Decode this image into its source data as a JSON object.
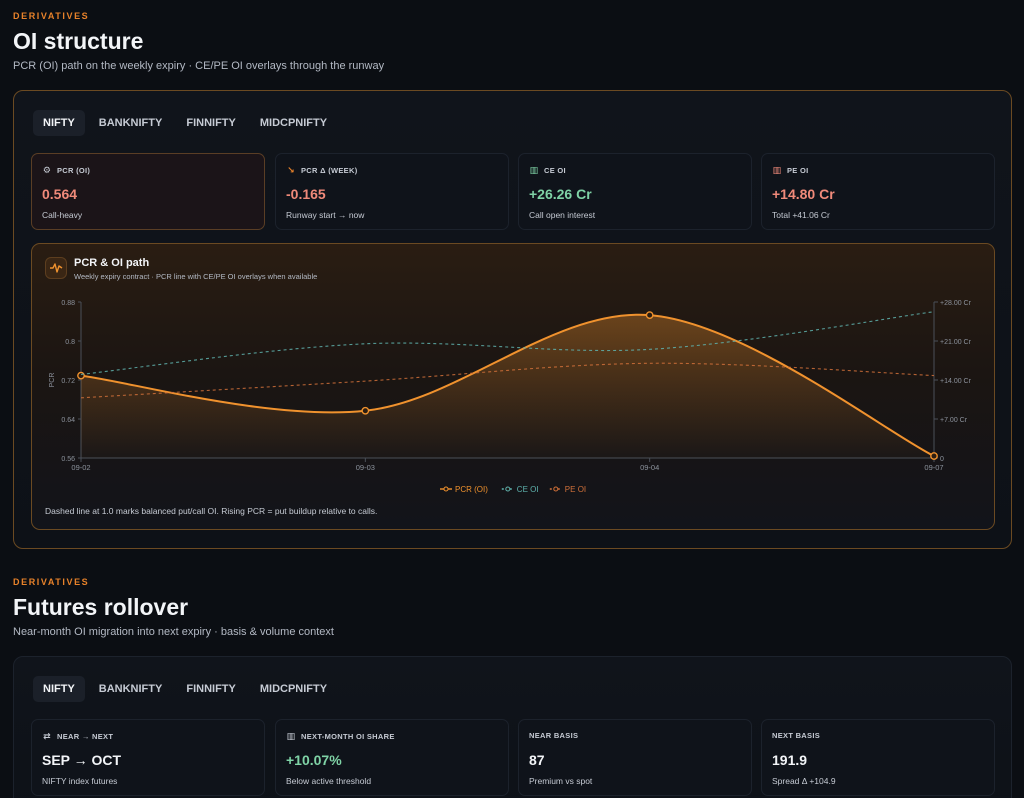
{
  "oi_section": {
    "eyebrow": "DERIVATIVES",
    "title": "OI structure",
    "subtitle": "PCR (OI) path on the weekly expiry · CE/PE OI overlays through the runway",
    "tabs": [
      "NIFTY",
      "BANKNIFTY",
      "FINNIFTY",
      "MIDCPNIFTY"
    ],
    "active_tab": "NIFTY",
    "kpis": [
      {
        "icon": "gauge-icon",
        "glyph": "⚙",
        "label": "PCR (OI)",
        "value": "0.564",
        "note": "Call-heavy",
        "tone": "neg"
      },
      {
        "icon": "trend-down-icon",
        "glyph": "↘",
        "label": "PCR Δ (WEEK)",
        "value": "-0.165",
        "note": "Runway start → now",
        "tone": "neg"
      },
      {
        "icon": "bar-chart-icon",
        "glyph": "▥",
        "label": "CE OI",
        "value": "+26.26 Cr",
        "note": "Call open interest",
        "tone": "pos"
      },
      {
        "icon": "bar-chart-icon",
        "glyph": "▥",
        "label": "PE OI",
        "value": "+14.80 Cr",
        "note": "Total +41.06 Cr",
        "tone": "neg"
      }
    ],
    "chart_card": {
      "title": "PCR & OI path",
      "subtitle": "Weekly expiry contract · PCR line with CE/PE OI overlays when available",
      "footnote": "Dashed line at 1.0 marks balanced put/call OI. Rising PCR = put buildup relative to calls."
    }
  },
  "chart_data": {
    "type": "line",
    "x": [
      "09-02",
      "09-03",
      "09-04",
      "09-07"
    ],
    "ylabel": "PCR",
    "ylim": [
      0.56,
      0.88
    ],
    "yticks": [
      "0.56",
      "0.64",
      "0.72",
      "0.8",
      "0.88"
    ],
    "y2lim": [
      0,
      28
    ],
    "y2ticks": [
      "0",
      "+7.00 Cr",
      "+14.00 Cr",
      "+21.00 Cr",
      "+28.00 Cr"
    ],
    "series": [
      {
        "name": "PCR (OI)",
        "axis": "left",
        "color": "#f0922e",
        "style": "solid",
        "values": [
          0.729,
          0.657,
          0.853,
          0.564
        ]
      },
      {
        "name": "CE OI",
        "axis": "right",
        "color": "#5fb3ae",
        "style": "dashed",
        "values": [
          15.0,
          20.5,
          19.5,
          26.26
        ]
      },
      {
        "name": "PE OI",
        "axis": "right",
        "color": "#d0703a",
        "style": "dashed",
        "values": [
          10.8,
          13.8,
          17.0,
          14.8
        ]
      }
    ],
    "legend": "bottom-center",
    "grid": false
  },
  "futures_section": {
    "eyebrow": "DERIVATIVES",
    "title": "Futures rollover",
    "subtitle": "Near-month OI migration into next expiry · basis & volume context",
    "tabs": [
      "NIFTY",
      "BANKNIFTY",
      "FINNIFTY",
      "MIDCPNIFTY"
    ],
    "active_tab": "NIFTY",
    "kpis": [
      {
        "icon": "swap-icon",
        "glyph": "⇄",
        "label": "NEAR → NEXT",
        "value": "SEP → OCT",
        "note": "NIFTY index futures",
        "tone": "neu"
      },
      {
        "icon": "bar-chart-icon",
        "glyph": "▥",
        "label": "NEXT-MONTH OI SHARE",
        "value": "+10.07%",
        "note": "Below active threshold",
        "tone": "pos"
      },
      {
        "icon": "",
        "glyph": "",
        "label": "NEAR BASIS",
        "value": "87",
        "note": "Premium vs spot",
        "tone": "neu"
      },
      {
        "icon": "",
        "glyph": "",
        "label": "NEXT BASIS",
        "value": "191.9",
        "note": "Spread Δ +104.9",
        "tone": "neu"
      }
    ]
  }
}
